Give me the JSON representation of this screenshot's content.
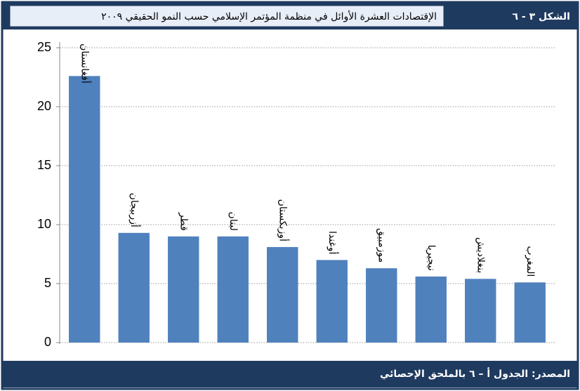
{
  "chart_data": {
    "type": "bar",
    "figure_label": "الشكل ٣ - ٦",
    "title": "الإقتصادات العشرة الأوائل في منظمة المؤتمر الإسلامي حسب النمو الحقيقي ٢٠٠٩",
    "source": "المصدر: الجدول أ – ٦ بالملحق الإحصائي",
    "categories": [
      "أفغانستان",
      "أزربيجان",
      "قطر",
      "لبنان",
      "أوزبكستان",
      "أوغندا",
      "موزمبيق",
      "نيجيريا",
      "بنغلاديش",
      "المغرب"
    ],
    "values": [
      22.6,
      9.3,
      9.0,
      9.0,
      8.1,
      7.0,
      6.3,
      5.6,
      5.4,
      5.1
    ],
    "color": "#4f81bd",
    "ylim": [
      0,
      25
    ],
    "yticks": [
      0,
      5,
      10,
      15,
      20,
      25
    ],
    "grid": true
  }
}
